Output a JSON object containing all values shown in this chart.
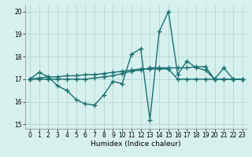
{
  "title": "",
  "xlabel": "Humidex (Indice chaleur)",
  "xlim": [
    -0.5,
    23.5
  ],
  "ylim": [
    14.8,
    20.3
  ],
  "yticks": [
    15,
    16,
    17,
    18,
    19,
    20
  ],
  "xticks": [
    0,
    1,
    2,
    3,
    4,
    5,
    6,
    7,
    8,
    9,
    10,
    11,
    12,
    13,
    14,
    15,
    16,
    17,
    18,
    19,
    20,
    21,
    22,
    23
  ],
  "bg_color": "#d6f0ee",
  "grid_color": "#aed4d0",
  "line_color": "#1a7070",
  "line_width": 1.0,
  "marker": "+",
  "marker_size": 4,
  "marker_edge_width": 1.0,
  "lines": [
    [
      17.0,
      17.3,
      17.1,
      16.7,
      16.5,
      16.1,
      15.9,
      15.85,
      16.3,
      16.9,
      16.8,
      18.1,
      18.35,
      15.2,
      19.1,
      20.0,
      17.2,
      17.8,
      17.5,
      17.4,
      17.0,
      17.5,
      17.0,
      17.0
    ],
    [
      17.0,
      17.05,
      17.1,
      17.1,
      17.15,
      17.15,
      17.2,
      17.2,
      17.25,
      17.3,
      17.35,
      17.4,
      17.45,
      17.45,
      17.45,
      17.45,
      17.0,
      17.0,
      17.0,
      17.0,
      17.0,
      17.0,
      17.0,
      17.0
    ],
    [
      17.0,
      17.0,
      17.0,
      17.0,
      17.0,
      17.0,
      17.0,
      17.05,
      17.1,
      17.15,
      17.25,
      17.35,
      17.4,
      17.5,
      17.5,
      17.5,
      17.5,
      17.5,
      17.55,
      17.55,
      17.0,
      17.0,
      17.0,
      17.0
    ]
  ]
}
